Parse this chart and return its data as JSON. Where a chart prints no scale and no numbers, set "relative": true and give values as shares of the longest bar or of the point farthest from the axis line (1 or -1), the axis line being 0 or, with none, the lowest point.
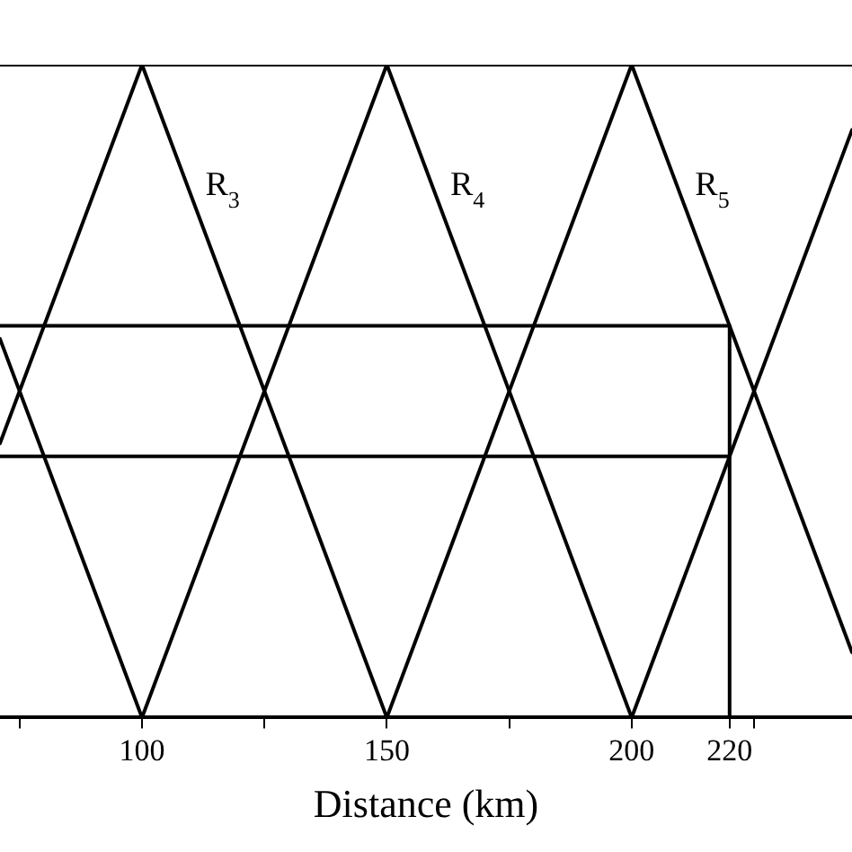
{
  "chart_data": {
    "type": "line",
    "relative": true,
    "xlabel": "Distance (km)",
    "xlim": [
      71,
      245
    ],
    "xticks": [
      {
        "value": 75,
        "label": null
      },
      100,
      {
        "value": 125,
        "label": null
      },
      150,
      {
        "value": 175,
        "label": null
      },
      200,
      220,
      {
        "value": 225,
        "label": null
      }
    ],
    "series": [
      {
        "color": "#000000",
        "x": [
          71,
          100,
          150,
          200,
          245
        ],
        "values": [
          0.42,
          1,
          0,
          1,
          0.1
        ]
      },
      {
        "color": "#000000",
        "x": [
          71,
          100,
          150,
          200,
          245
        ],
        "values": [
          0.58,
          0,
          1,
          0,
          0.9
        ]
      },
      {
        "color": "#000000",
        "x": [
          71,
          245
        ],
        "values": [
          1,
          1
        ]
      },
      {
        "color": "#000000",
        "x": [
          71,
          220,
          220
        ],
        "values": [
          0.6,
          0.6,
          0
        ]
      },
      {
        "color": "#000000",
        "x": [
          71,
          220
        ],
        "values": [
          0.4,
          0.4
        ]
      }
    ],
    "annotations": [
      {
        "text": "R$_{3}$",
        "x": 110,
        "y": 0.8
      },
      {
        "text": "R$_{4}$",
        "x": 160,
        "y": 0.8
      },
      {
        "text": "R$_{5}$",
        "x": 210,
        "y": 0.8
      }
    ],
    "marker": "none",
    "line_style": "solid",
    "grid": false,
    "legend": false
  }
}
